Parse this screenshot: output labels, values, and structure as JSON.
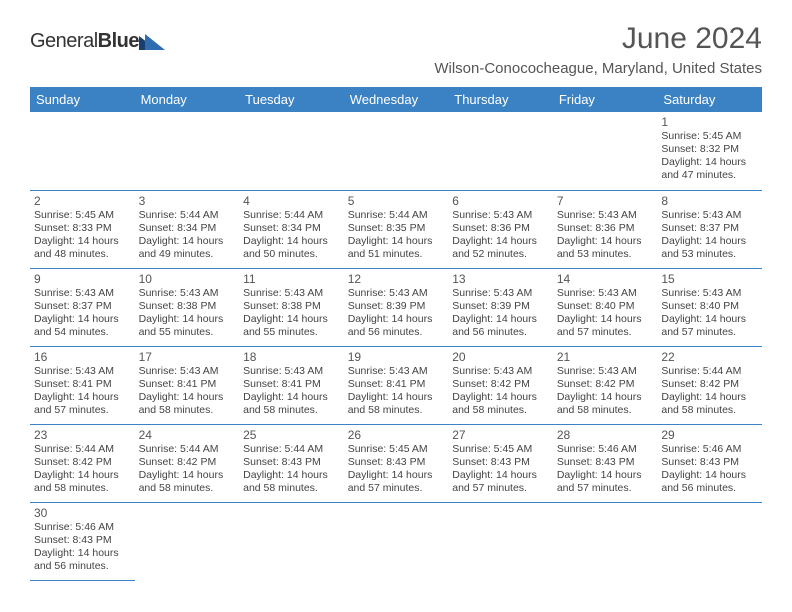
{
  "logo": {
    "word1": "General",
    "word2": "Blue",
    "mark_color1": "#1a3e6e",
    "mark_color2": "#2f6db3"
  },
  "title": "June 2024",
  "location": "Wilson-Conococheague, Maryland, United States",
  "header_bg": "#3b82c4",
  "header_fg": "#ffffff",
  "border_color": "#3b82c4",
  "daynames": [
    "Sunday",
    "Monday",
    "Tuesday",
    "Wednesday",
    "Thursday",
    "Friday",
    "Saturday"
  ],
  "weeks": [
    [
      null,
      null,
      null,
      null,
      null,
      null,
      {
        "n": "1",
        "sr": "Sunrise: 5:45 AM",
        "ss": "Sunset: 8:32 PM",
        "dl": "Daylight: 14 hours and 47 minutes."
      }
    ],
    [
      {
        "n": "2",
        "sr": "Sunrise: 5:45 AM",
        "ss": "Sunset: 8:33 PM",
        "dl": "Daylight: 14 hours and 48 minutes."
      },
      {
        "n": "3",
        "sr": "Sunrise: 5:44 AM",
        "ss": "Sunset: 8:34 PM",
        "dl": "Daylight: 14 hours and 49 minutes."
      },
      {
        "n": "4",
        "sr": "Sunrise: 5:44 AM",
        "ss": "Sunset: 8:34 PM",
        "dl": "Daylight: 14 hours and 50 minutes."
      },
      {
        "n": "5",
        "sr": "Sunrise: 5:44 AM",
        "ss": "Sunset: 8:35 PM",
        "dl": "Daylight: 14 hours and 51 minutes."
      },
      {
        "n": "6",
        "sr": "Sunrise: 5:43 AM",
        "ss": "Sunset: 8:36 PM",
        "dl": "Daylight: 14 hours and 52 minutes."
      },
      {
        "n": "7",
        "sr": "Sunrise: 5:43 AM",
        "ss": "Sunset: 8:36 PM",
        "dl": "Daylight: 14 hours and 53 minutes."
      },
      {
        "n": "8",
        "sr": "Sunrise: 5:43 AM",
        "ss": "Sunset: 8:37 PM",
        "dl": "Daylight: 14 hours and 53 minutes."
      }
    ],
    [
      {
        "n": "9",
        "sr": "Sunrise: 5:43 AM",
        "ss": "Sunset: 8:37 PM",
        "dl": "Daylight: 14 hours and 54 minutes."
      },
      {
        "n": "10",
        "sr": "Sunrise: 5:43 AM",
        "ss": "Sunset: 8:38 PM",
        "dl": "Daylight: 14 hours and 55 minutes."
      },
      {
        "n": "11",
        "sr": "Sunrise: 5:43 AM",
        "ss": "Sunset: 8:38 PM",
        "dl": "Daylight: 14 hours and 55 minutes."
      },
      {
        "n": "12",
        "sr": "Sunrise: 5:43 AM",
        "ss": "Sunset: 8:39 PM",
        "dl": "Daylight: 14 hours and 56 minutes."
      },
      {
        "n": "13",
        "sr": "Sunrise: 5:43 AM",
        "ss": "Sunset: 8:39 PM",
        "dl": "Daylight: 14 hours and 56 minutes."
      },
      {
        "n": "14",
        "sr": "Sunrise: 5:43 AM",
        "ss": "Sunset: 8:40 PM",
        "dl": "Daylight: 14 hours and 57 minutes."
      },
      {
        "n": "15",
        "sr": "Sunrise: 5:43 AM",
        "ss": "Sunset: 8:40 PM",
        "dl": "Daylight: 14 hours and 57 minutes."
      }
    ],
    [
      {
        "n": "16",
        "sr": "Sunrise: 5:43 AM",
        "ss": "Sunset: 8:41 PM",
        "dl": "Daylight: 14 hours and 57 minutes."
      },
      {
        "n": "17",
        "sr": "Sunrise: 5:43 AM",
        "ss": "Sunset: 8:41 PM",
        "dl": "Daylight: 14 hours and 58 minutes."
      },
      {
        "n": "18",
        "sr": "Sunrise: 5:43 AM",
        "ss": "Sunset: 8:41 PM",
        "dl": "Daylight: 14 hours and 58 minutes."
      },
      {
        "n": "19",
        "sr": "Sunrise: 5:43 AM",
        "ss": "Sunset: 8:41 PM",
        "dl": "Daylight: 14 hours and 58 minutes."
      },
      {
        "n": "20",
        "sr": "Sunrise: 5:43 AM",
        "ss": "Sunset: 8:42 PM",
        "dl": "Daylight: 14 hours and 58 minutes."
      },
      {
        "n": "21",
        "sr": "Sunrise: 5:43 AM",
        "ss": "Sunset: 8:42 PM",
        "dl": "Daylight: 14 hours and 58 minutes."
      },
      {
        "n": "22",
        "sr": "Sunrise: 5:44 AM",
        "ss": "Sunset: 8:42 PM",
        "dl": "Daylight: 14 hours and 58 minutes."
      }
    ],
    [
      {
        "n": "23",
        "sr": "Sunrise: 5:44 AM",
        "ss": "Sunset: 8:42 PM",
        "dl": "Daylight: 14 hours and 58 minutes."
      },
      {
        "n": "24",
        "sr": "Sunrise: 5:44 AM",
        "ss": "Sunset: 8:42 PM",
        "dl": "Daylight: 14 hours and 58 minutes."
      },
      {
        "n": "25",
        "sr": "Sunrise: 5:44 AM",
        "ss": "Sunset: 8:43 PM",
        "dl": "Daylight: 14 hours and 58 minutes."
      },
      {
        "n": "26",
        "sr": "Sunrise: 5:45 AM",
        "ss": "Sunset: 8:43 PM",
        "dl": "Daylight: 14 hours and 57 minutes."
      },
      {
        "n": "27",
        "sr": "Sunrise: 5:45 AM",
        "ss": "Sunset: 8:43 PM",
        "dl": "Daylight: 14 hours and 57 minutes."
      },
      {
        "n": "28",
        "sr": "Sunrise: 5:46 AM",
        "ss": "Sunset: 8:43 PM",
        "dl": "Daylight: 14 hours and 57 minutes."
      },
      {
        "n": "29",
        "sr": "Sunrise: 5:46 AM",
        "ss": "Sunset: 8:43 PM",
        "dl": "Daylight: 14 hours and 56 minutes."
      }
    ],
    [
      {
        "n": "30",
        "sr": "Sunrise: 5:46 AM",
        "ss": "Sunset: 8:43 PM",
        "dl": "Daylight: 14 hours and 56 minutes."
      },
      null,
      null,
      null,
      null,
      null,
      null
    ]
  ]
}
